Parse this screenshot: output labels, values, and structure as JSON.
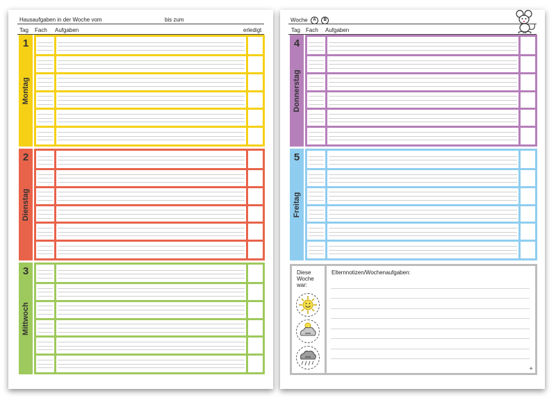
{
  "left_page": {
    "header": {
      "homework_week_from": "Hausaufgaben in der Woche vom",
      "until": "bis zum"
    },
    "columns": {
      "day": "Tag",
      "subject": "Fach",
      "tasks": "Aufgaben",
      "done": "erledigt"
    }
  },
  "right_page": {
    "header": {
      "week": "Woche",
      "week_a": "A",
      "week_b": "B"
    },
    "columns": {
      "day": "Tag",
      "subject": "Fach",
      "tasks": "Aufgaben"
    },
    "mood": {
      "line1": "Diese",
      "line2": "Woche",
      "line3": "war:",
      "faces": [
        "sunny",
        "cloudy",
        "stormy"
      ]
    },
    "notes": {
      "label": "Elternnotizen/Wochenaufgaben:",
      "corner_mark": "+"
    }
  },
  "days": [
    {
      "number": "1",
      "name": "Montag",
      "color": "#f5d015"
    },
    {
      "number": "2",
      "name": "Dienstag",
      "color": "#e8634a"
    },
    {
      "number": "3",
      "name": "Mittwoch",
      "color": "#9ec95c"
    },
    {
      "number": "4",
      "name": "Donnerstag",
      "color": "#b57fba"
    },
    {
      "number": "5",
      "name": "Freitag",
      "color": "#8fcdf0"
    }
  ],
  "icons": {
    "mouse": "mouse-mascot-icon",
    "sun": "sun-icon",
    "cloud": "cloud-icon",
    "storm": "storm-cloud-icon"
  }
}
